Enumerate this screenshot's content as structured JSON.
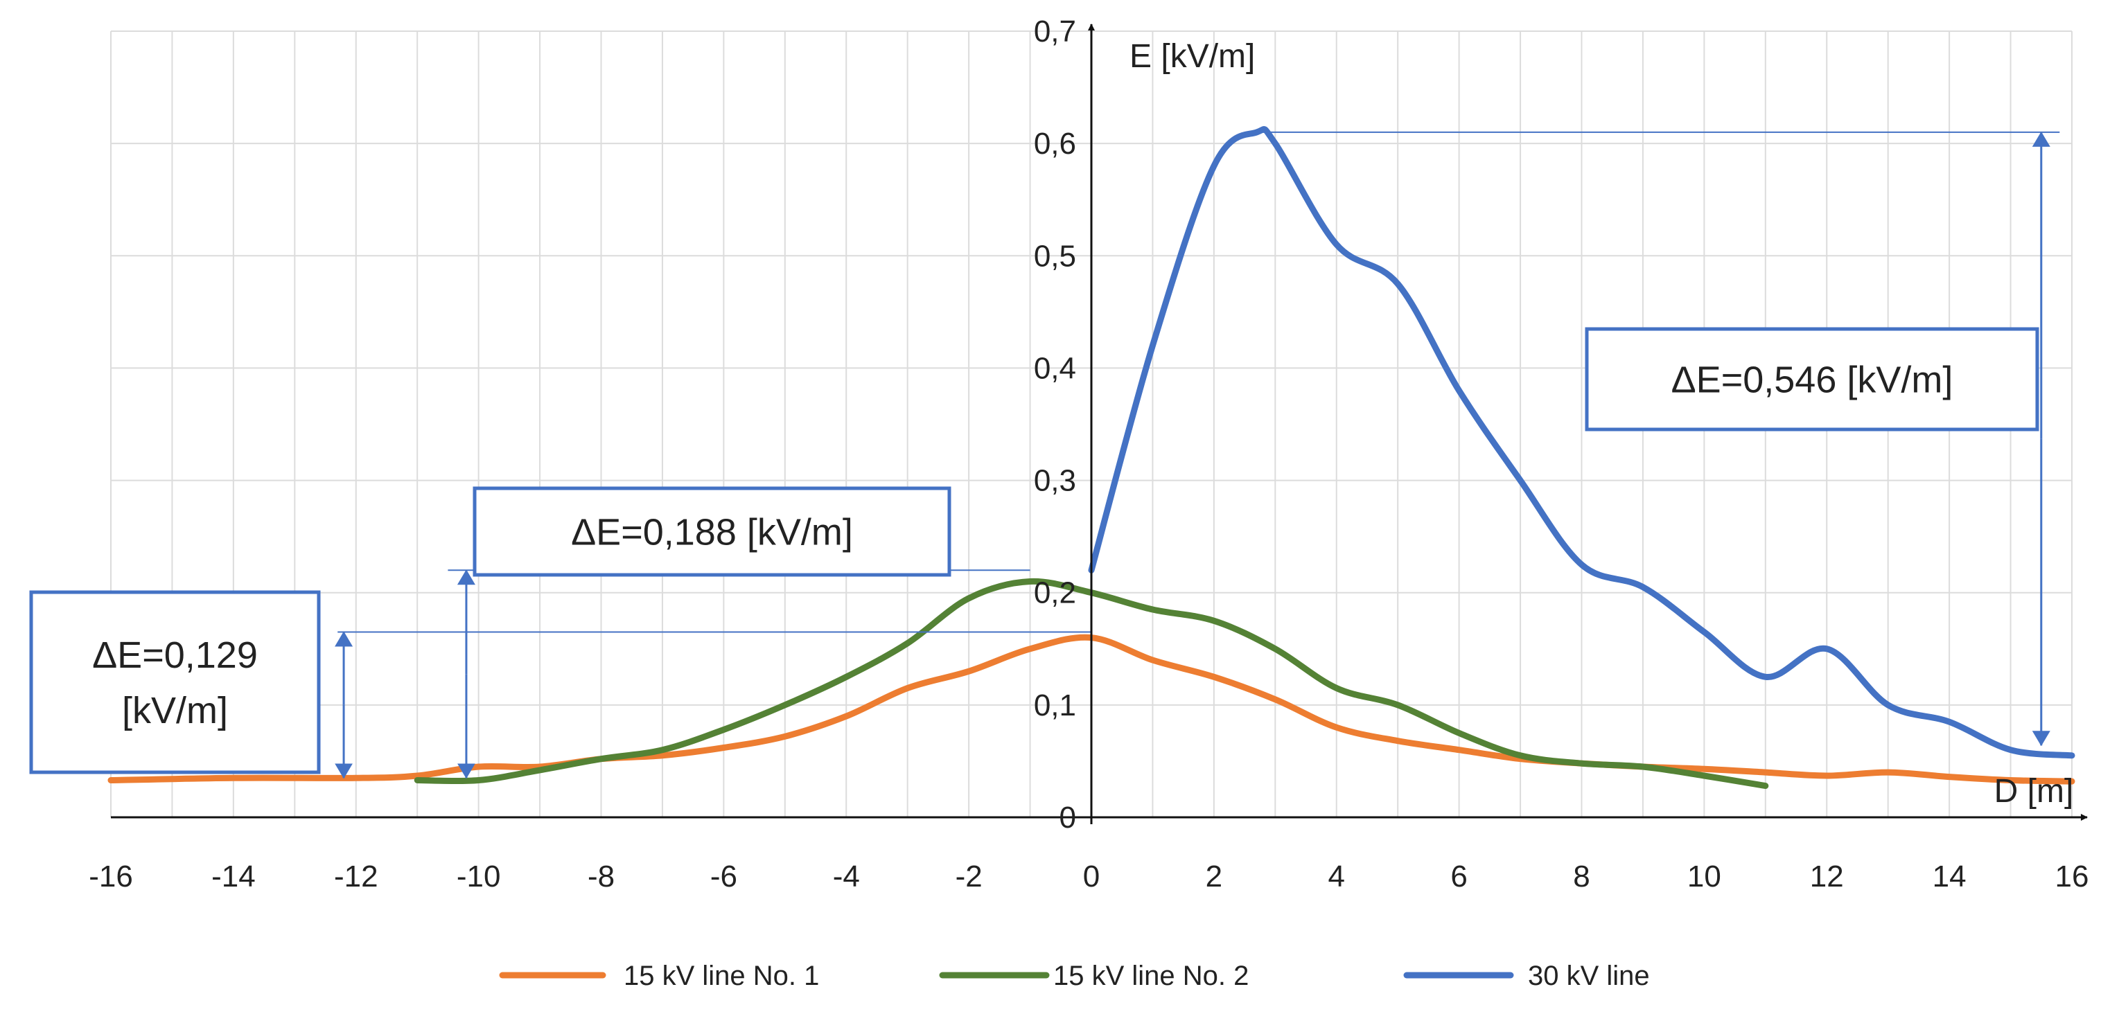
{
  "chart_data": {
    "type": "line",
    "title": "",
    "xlabel": "D [m]",
    "ylabel": "E [kV/m]",
    "xlim": [
      -16,
      16
    ],
    "ylim": [
      0,
      0.7
    ],
    "grid": true,
    "x_ticks": [
      -16,
      -14,
      -12,
      -10,
      -8,
      -6,
      -4,
      -2,
      0,
      2,
      4,
      6,
      8,
      10,
      12,
      14,
      16
    ],
    "y_ticks": [
      0,
      0.1,
      0.2,
      0.3,
      0.4,
      0.5,
      0.6,
      0.7
    ],
    "x_tick_labels": [
      "-16",
      "-14",
      "-12",
      "-10",
      "-8",
      "-6",
      "-4",
      "-2",
      "0",
      "2",
      "4",
      "6",
      "8",
      "10",
      "12",
      "14",
      "16"
    ],
    "y_tick_labels": [
      "0",
      "0,1",
      "0,2",
      "0,3",
      "0,4",
      "0,5",
      "0,6",
      "0,7"
    ],
    "legend_position": "bottom",
    "series": [
      {
        "name": "15 kV line No. 1",
        "color": "#ED7D31",
        "x": [
          -16,
          -14,
          -12,
          -11,
          -10,
          -9,
          -8,
          -7,
          -6,
          -5,
          -4,
          -3,
          -2,
          -1,
          0,
          1,
          2,
          3,
          4,
          5,
          6,
          7,
          8,
          9,
          10,
          11,
          12,
          13,
          14,
          15,
          16
        ],
        "y": [
          0.033,
          0.035,
          0.035,
          0.037,
          0.045,
          0.045,
          0.052,
          0.055,
          0.062,
          0.072,
          0.09,
          0.115,
          0.13,
          0.15,
          0.16,
          0.14,
          0.125,
          0.105,
          0.08,
          0.068,
          0.06,
          0.052,
          0.048,
          0.045,
          0.043,
          0.04,
          0.037,
          0.04,
          0.036,
          0.033,
          0.032
        ]
      },
      {
        "name": "15 kV line No. 2",
        "color": "#548235",
        "x": [
          -11,
          -10,
          -9,
          -8,
          -7,
          -6,
          -5,
          -4,
          -3,
          -2,
          -1,
          0,
          1,
          2,
          3,
          4,
          5,
          6,
          7,
          8,
          9,
          10,
          11
        ],
        "y": [
          0.033,
          0.033,
          0.042,
          0.052,
          0.06,
          0.078,
          0.1,
          0.125,
          0.155,
          0.195,
          0.21,
          0.2,
          0.185,
          0.175,
          0.15,
          0.115,
          0.1,
          0.075,
          0.055,
          0.048,
          0.045,
          0.037,
          0.028
        ]
      },
      {
        "name": "30 kV line",
        "color": "#4472C4",
        "x": [
          0,
          1,
          2,
          2.7,
          3,
          4,
          5,
          6,
          7,
          8,
          9,
          10,
          11,
          12,
          13,
          14,
          15,
          16
        ],
        "y": [
          0.22,
          0.42,
          0.58,
          0.61,
          0.6,
          0.51,
          0.475,
          0.38,
          0.3,
          0.225,
          0.205,
          0.165,
          0.125,
          0.15,
          0.1,
          0.085,
          0.06,
          0.055
        ]
      }
    ],
    "annotations": [
      {
        "label": "ΔE=0,546 [kV/m]",
        "lines": [
          "ΔE=0,546 [kV/m]"
        ],
        "color": "#4472C4",
        "ref_value": 0.61,
        "arrow_x": 15.5,
        "arrow_from": 0.064,
        "arrow_to": 0.61,
        "line_from_x": 2.7,
        "line_to_x": 15.8
      },
      {
        "label": "ΔE=0,188 [kV/m]",
        "lines": [
          "ΔE=0,188 [kV/m]"
        ],
        "color": "#4472C4",
        "ref_value": 0.22,
        "arrow_x": -10.2,
        "arrow_from": 0.035,
        "arrow_to": 0.22,
        "line_from_x": -10.5,
        "line_to_x": -1
      },
      {
        "label": "ΔE=0,129 [kV/m]",
        "lines": [
          "ΔE=0,129",
          "[kV/m]"
        ],
        "color": "#4472C4",
        "ref_value": 0.165,
        "arrow_x": -12.2,
        "arrow_from": 0.035,
        "arrow_to": 0.165,
        "line_from_x": -12.3,
        "line_to_x": 0
      }
    ]
  }
}
